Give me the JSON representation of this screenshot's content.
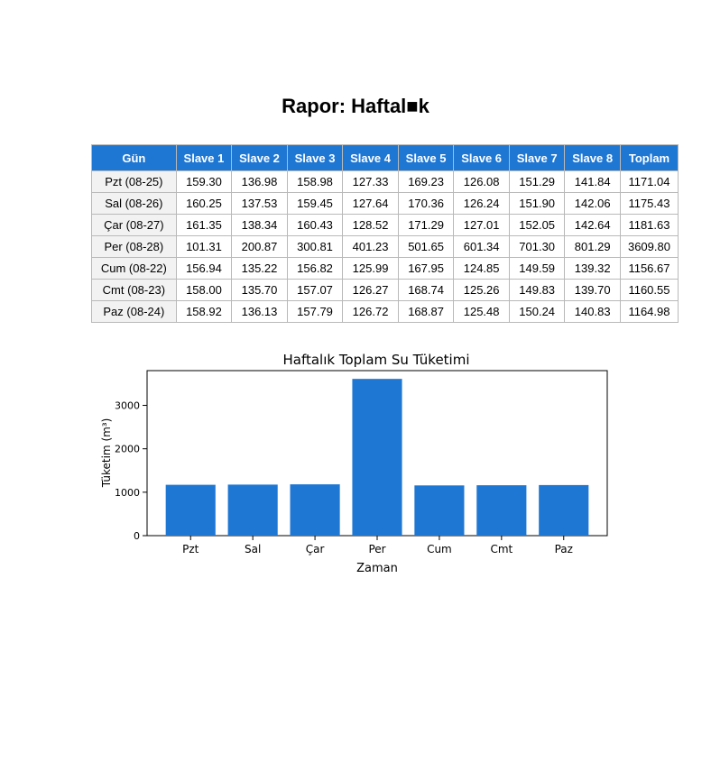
{
  "report": {
    "title": "Rapor: Haftal■k"
  },
  "table": {
    "headers": [
      "Gün",
      "Slave 1",
      "Slave 2",
      "Slave 3",
      "Slave 4",
      "Slave 5",
      "Slave 6",
      "Slave 7",
      "Slave 8",
      "Toplam"
    ],
    "rows": [
      [
        "Pzt (08-25)",
        "159.30",
        "136.98",
        "158.98",
        "127.33",
        "169.23",
        "126.08",
        "151.29",
        "141.84",
        "1171.04"
      ],
      [
        "Sal (08-26)",
        "160.25",
        "137.53",
        "159.45",
        "127.64",
        "170.36",
        "126.24",
        "151.90",
        "142.06",
        "1175.43"
      ],
      [
        "Çar (08-27)",
        "161.35",
        "138.34",
        "160.43",
        "128.52",
        "171.29",
        "127.01",
        "152.05",
        "142.64",
        "1181.63"
      ],
      [
        "Per (08-28)",
        "101.31",
        "200.87",
        "300.81",
        "401.23",
        "501.65",
        "601.34",
        "701.30",
        "801.29",
        "3609.80"
      ],
      [
        "Cum (08-22)",
        "156.94",
        "135.22",
        "156.82",
        "125.99",
        "167.95",
        "124.85",
        "149.59",
        "139.32",
        "1156.67"
      ],
      [
        "Cmt (08-23)",
        "158.00",
        "135.70",
        "157.07",
        "126.27",
        "168.74",
        "125.26",
        "149.83",
        "139.70",
        "1160.55"
      ],
      [
        "Paz (08-24)",
        "158.92",
        "136.13",
        "157.79",
        "126.72",
        "168.87",
        "125.48",
        "150.24",
        "140.83",
        "1164.98"
      ]
    ]
  },
  "colors": {
    "header_bg": "#1f77d4",
    "bar": "#1f77d4",
    "day_cell_bg": "#f2f2f2",
    "grid_border": "#b9b9b9"
  },
  "chart_data": {
    "type": "bar",
    "title": "Haftalık Toplam Su Tüketimi",
    "xlabel": "Zaman",
    "ylabel": "Tüketim (m³)",
    "categories": [
      "Pzt",
      "Sal",
      "Çar",
      "Per",
      "Cum",
      "Cmt",
      "Paz"
    ],
    "values": [
      1171.04,
      1175.43,
      1181.63,
      3609.8,
      1156.67,
      1160.55,
      1164.98
    ],
    "yticks": [
      0,
      1000,
      2000,
      3000
    ],
    "ylim": [
      0,
      3800
    ],
    "grid": false,
    "legend": false
  }
}
